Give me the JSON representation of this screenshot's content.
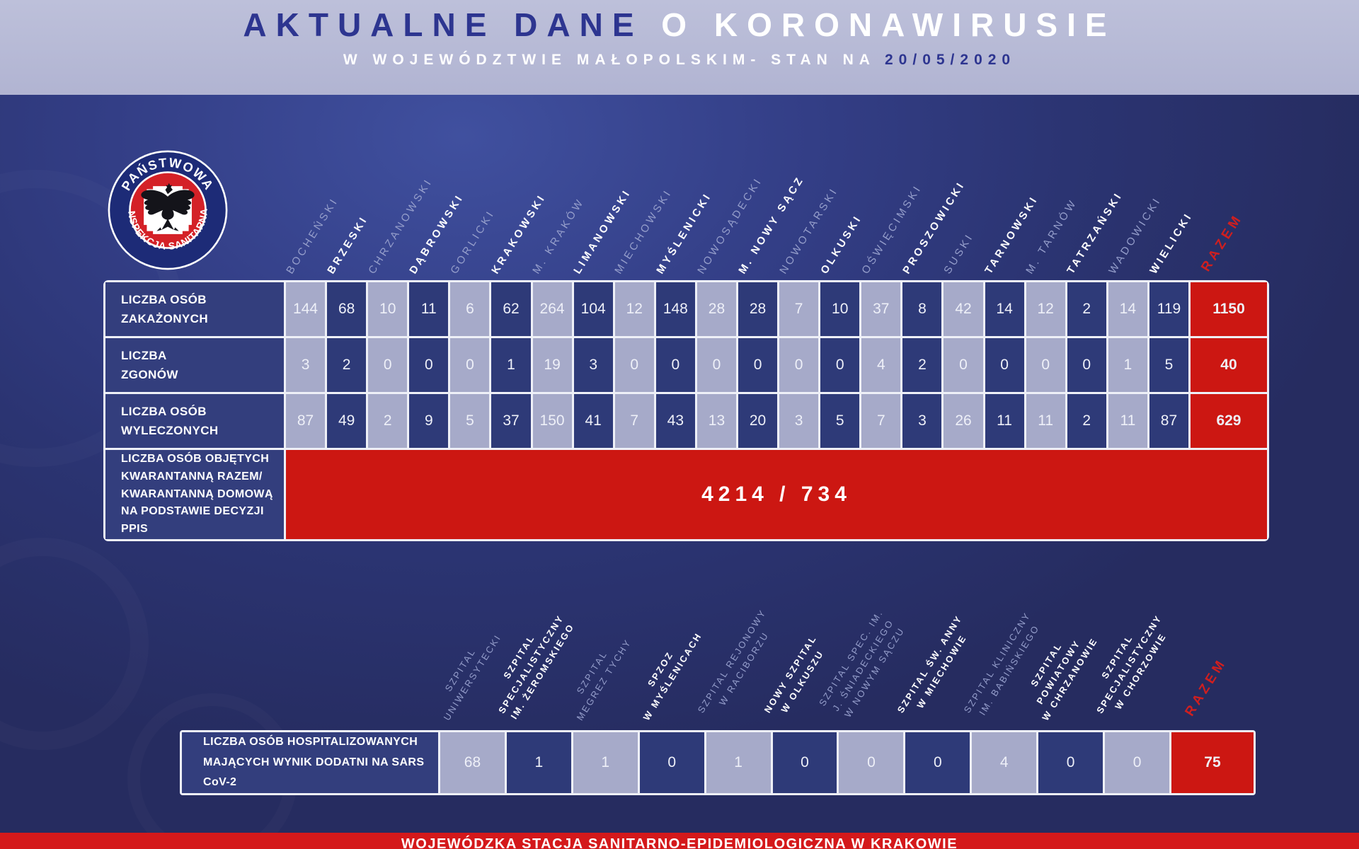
{
  "header": {
    "title_dark": "AKTUALNE DANE",
    "title_light": " O KORONAWIRUSIE",
    "subtitle_light": "W WOJEWÓDZTWIE MAŁOPOLSKIM- STAN NA ",
    "subtitle_date": "20/05/2020"
  },
  "logo": {
    "ring_top": "PAŃSTWOWA",
    "ring_bottom": "INSPEKCJA SANITARNA"
  },
  "ui": {
    "razem_label": "RAZEM",
    "row_labels": [
      "LICZBA OSÓB\nZAKAŻONYCH",
      "LICZBA\nZGONÓW",
      "LICZBA OSÓB\nWYLECZONYCH"
    ],
    "quarantine_label": "LICZBA OSÓB OBJĘTYCH\nKWARANTANNĄ RAZEM/\nKWARANTANNĄ DOMOWĄ\nNA PODSTAWIE DECYZJI PPIS",
    "hospital_row_label": "LICZBA OSÓB HOSPITALIZOWANYCH\nMAJĄCYCH WYNIK DODATNI NA SARS CoV-2",
    "hospital_columns": [
      {
        "label": "SZPITAL\nUNIWERSYTECKI",
        "bright": false
      },
      {
        "label": "SZPITAL\nSPECJALISTYCZNY\nIM. ŻEROMSKIEGO",
        "bright": true
      },
      {
        "label": "SZPITAL\nMEGREZ TYCHY",
        "bright": false
      },
      {
        "label": "SPZOZ\nW MYŚLENICACH",
        "bright": true
      },
      {
        "label": "SZPITAL REJONOWY\nW RACIBORZU",
        "bright": false
      },
      {
        "label": "NOWY SZPITAL\nW OLKUSZU",
        "bright": true
      },
      {
        "label": "SZPITAL SPEC. IM.\nJ. ŚNIADECKIEGO\nW NOWYM SĄCZU",
        "bright": false
      },
      {
        "label": "SZPITAL ŚW. ANNY\nW MIECHOWIE",
        "bright": true
      },
      {
        "label": "SZPITAL KLINICZNY\nIM. BABIŃSKIEGO",
        "bright": false
      },
      {
        "label": "SZPITAL\nPOWIATOWY\nW CHRZANOWIE",
        "bright": true
      },
      {
        "label": "SZPITAL\nSPECJALISTYCZNY\nW CHORZOWIE",
        "bright": true
      }
    ]
  },
  "footer": {
    "text": "WOJEWÓDZKA STACJA SANITARNO-EPIDEMIOLOGICZNA W KRAKOWIE"
  },
  "colors": {
    "header_bg": "#b4b7d5",
    "background_navy": "#2f3a7e",
    "cell_lavender": "#a6aac9",
    "cell_dark": "#2e3a78",
    "accent_red": "#cc1712",
    "razem_text_red": "#d01f1f",
    "muted_label": "#959ecb",
    "title_navy": "#2d3590"
  },
  "chart_data": {
    "type": "table",
    "title": "AKTUALNE DANE O KORONAWIRUSIE",
    "subtitle": "W WOJEWÓDZTWIE MAŁOPOLSKIM- STAN NA 20/05/2020",
    "tables": [
      {
        "name": "powiaty",
        "columns": [
          "BOCHEŃSKI",
          "BRZESKI",
          "CHRZANOWSKI",
          "DĄBROWSKI",
          "GORLICKI",
          "KRAKOWSKI",
          "M. KRAKÓW",
          "LIMANOWSKI",
          "MIECHOWSKI",
          "MYŚLENICKI",
          "NOWOSĄDECKI",
          "M. NOWY SĄCZ",
          "NOWOTARSKI",
          "OLKUSKI",
          "OŚWIĘCIMSKI",
          "PROSZOWICKI",
          "SUSKI",
          "TARNOWSKI",
          "M. TARNÓW",
          "TATRZAŃSKI",
          "WADOWICKI",
          "WIELICKI",
          "RAZEM"
        ],
        "rows": [
          {
            "label": "LICZBA OSÓB ZAKAŻONYCH",
            "values": [
              144,
              68,
              10,
              11,
              6,
              62,
              264,
              104,
              12,
              148,
              28,
              28,
              7,
              10,
              37,
              8,
              42,
              14,
              12,
              2,
              14,
              119
            ],
            "total": 1150
          },
          {
            "label": "LICZBA ZGONÓW",
            "values": [
              3,
              2,
              0,
              0,
              0,
              1,
              19,
              3,
              0,
              0,
              0,
              0,
              0,
              0,
              4,
              2,
              0,
              0,
              0,
              0,
              1,
              5
            ],
            "total": 40
          },
          {
            "label": "LICZBA OSÓB WYLECZONYCH",
            "values": [
              87,
              49,
              2,
              9,
              5,
              37,
              150,
              41,
              7,
              43,
              13,
              20,
              3,
              5,
              7,
              3,
              26,
              11,
              11,
              2,
              11,
              87
            ],
            "total": 629
          }
        ],
        "quarantine_row": {
          "label": "LICZBA OSÓB OBJĘTYCH KWARANTANNĄ RAZEM/ KWARANTANNĄ DOMOWĄ NA PODSTAWIE DECYZJI PPIS",
          "value": "4214 / 734"
        }
      },
      {
        "name": "szpitale",
        "columns": [
          "SZPITAL UNIWERSYTECKI",
          "SZPITAL SPECJALISTYCZNY IM. ŻEROMSKIEGO",
          "SZPITAL MEGREZ TYCHY",
          "SPZOZ W MYŚLENICACH",
          "SZPITAL REJONOWY W RACIBORZU",
          "NOWY SZPITAL W OLKUSZU",
          "SZPITAL SPEC. IM. J. ŚNIADECKIEGO W NOWYM SĄCZU",
          "SZPITAL ŚW. ANNY W MIECHOWIE",
          "SZPITAL KLINICZNY IM. BABIŃSKIEGO",
          "SZPITAL POWIATOWY W CHRZANOWIE",
          "SZPITAL SPECJALISTYCZNY W CHORZOWIE",
          "RAZEM"
        ],
        "rows": [
          {
            "label": "LICZBA OSÓB HOSPITALIZOWANYCH MAJĄCYCH WYNIK DODATNI NA SARS CoV-2",
            "values": [
              68,
              1,
              1,
              0,
              1,
              0,
              0,
              0,
              4,
              0,
              0
            ],
            "total": 75
          }
        ]
      }
    ]
  }
}
